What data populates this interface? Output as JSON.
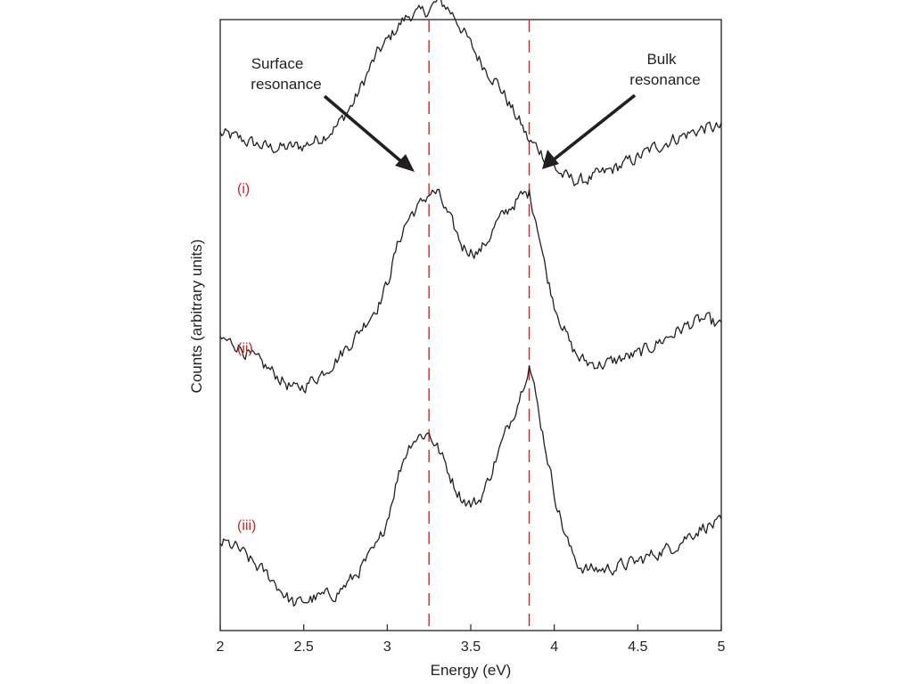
{
  "chart_data": {
    "type": "line",
    "title": "",
    "xlabel": "Energy (eV)",
    "ylabel": "Counts (arbitrary units)",
    "xlim": [
      2,
      5
    ],
    "ylim": [
      0,
      3.1
    ],
    "x_ticks": [
      "2",
      "2.5",
      "3",
      "3.5",
      "4",
      "4.5",
      "5"
    ],
    "y_ticks_shown": false,
    "grid": false,
    "legend": "none",
    "colors": {
      "trace": "#231f20",
      "reference": "#d2232a",
      "series_label": "#d2232a"
    },
    "reference_lines": [
      3.25,
      3.85
    ],
    "annotations": [
      {
        "text_lines": [
          "Surface",
          "resonance"
        ],
        "points_to": 3.25
      },
      {
        "text_lines": [
          "Bulk",
          "resonance"
        ],
        "points_to": 3.85
      }
    ],
    "series": [
      {
        "name": "(i)",
        "x": [
          2.0,
          2.1,
          2.2,
          2.3,
          2.4,
          2.5,
          2.6,
          2.7,
          2.75,
          2.8,
          2.85,
          2.9,
          2.95,
          3.0,
          3.05,
          3.1,
          3.15,
          3.2,
          3.25,
          3.3,
          3.35,
          3.4,
          3.45,
          3.5,
          3.55,
          3.6,
          3.65,
          3.7,
          3.75,
          3.8,
          3.85,
          3.9,
          3.95,
          4.0,
          4.05,
          4.1,
          4.15,
          4.2,
          4.3,
          4.4,
          4.5,
          4.6,
          4.7,
          4.8,
          4.9,
          5.0
        ],
        "values": [
          2.52,
          2.5,
          2.47,
          2.45,
          2.45,
          2.46,
          2.5,
          2.56,
          2.62,
          2.68,
          2.77,
          2.86,
          2.94,
          2.99,
          3.05,
          3.1,
          3.13,
          3.13,
          3.15,
          3.19,
          3.17,
          3.12,
          3.05,
          2.97,
          2.9,
          2.84,
          2.79,
          2.72,
          2.64,
          2.57,
          2.48,
          2.45,
          2.4,
          2.35,
          2.31,
          2.29,
          2.28,
          2.29,
          2.32,
          2.36,
          2.4,
          2.45,
          2.49,
          2.52,
          2.55,
          2.55
        ]
      },
      {
        "name": "(ii)",
        "x": [
          2.0,
          2.1,
          2.2,
          2.3,
          2.4,
          2.45,
          2.5,
          2.6,
          2.7,
          2.8,
          2.9,
          2.95,
          3.0,
          3.05,
          3.1,
          3.15,
          3.2,
          3.25,
          3.3,
          3.35,
          3.4,
          3.45,
          3.5,
          3.55,
          3.6,
          3.65,
          3.7,
          3.75,
          3.8,
          3.85,
          3.9,
          3.95,
          4.0,
          4.05,
          4.1,
          4.15,
          4.2,
          4.3,
          4.4,
          4.5,
          4.6,
          4.7,
          4.8,
          4.9,
          5.0
        ],
        "values": [
          1.48,
          1.45,
          1.38,
          1.32,
          1.25,
          1.22,
          1.24,
          1.3,
          1.38,
          1.48,
          1.6,
          1.66,
          1.76,
          1.92,
          2.05,
          2.12,
          2.16,
          2.22,
          2.22,
          2.13,
          2.04,
          1.95,
          1.93,
          1.92,
          1.98,
          2.06,
          2.11,
          2.16,
          2.2,
          2.22,
          2.06,
          1.82,
          1.66,
          1.55,
          1.44,
          1.38,
          1.36,
          1.35,
          1.38,
          1.4,
          1.45,
          1.5,
          1.55,
          1.58,
          1.54
        ]
      },
      {
        "name": "(iii)",
        "x": [
          2.0,
          2.1,
          2.2,
          2.3,
          2.4,
          2.45,
          2.5,
          2.6,
          2.7,
          2.8,
          2.9,
          2.95,
          3.0,
          3.05,
          3.1,
          3.15,
          3.2,
          3.25,
          3.3,
          3.35,
          3.4,
          3.45,
          3.5,
          3.55,
          3.6,
          3.65,
          3.7,
          3.75,
          3.8,
          3.85,
          3.9,
          3.95,
          4.0,
          4.05,
          4.1,
          4.15,
          4.2,
          4.3,
          4.4,
          4.5,
          4.6,
          4.7,
          4.8,
          4.9,
          5.0
        ],
        "values": [
          0.45,
          0.42,
          0.34,
          0.27,
          0.17,
          0.13,
          0.15,
          0.17,
          0.19,
          0.27,
          0.38,
          0.44,
          0.57,
          0.74,
          0.88,
          0.97,
          0.99,
          1.0,
          0.93,
          0.84,
          0.74,
          0.67,
          0.64,
          0.66,
          0.75,
          0.87,
          0.98,
          1.09,
          1.21,
          1.36,
          1.14,
          0.92,
          0.7,
          0.53,
          0.4,
          0.33,
          0.31,
          0.31,
          0.33,
          0.35,
          0.39,
          0.42,
          0.48,
          0.53,
          0.54
        ]
      }
    ]
  }
}
